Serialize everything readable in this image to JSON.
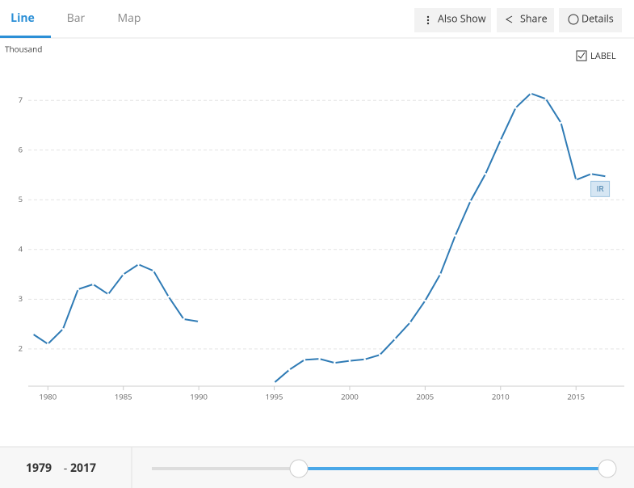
{
  "tabs": [
    "Line",
    "Bar",
    "Map"
  ],
  "actions": [
    "Also Show",
    "Share",
    "Details"
  ],
  "chart_data": {
    "type": "line",
    "y_unit": "Thousand",
    "legend_label": "LABEL",
    "x": [
      1979,
      1980,
      1981,
      1982,
      1983,
      1984,
      1985,
      1986,
      1987,
      1988,
      1989,
      1990,
      1991,
      1992,
      1993,
      1994,
      1995,
      1996,
      1997,
      1998,
      1999,
      2000,
      2001,
      2002,
      2003,
      2004,
      2005,
      2006,
      2007,
      2008,
      2009,
      2010,
      2011,
      2012,
      2013,
      2014,
      2015,
      2016,
      2017
    ],
    "series": [
      {
        "name": "IR",
        "color": "#2f7bb5",
        "values": [
          2.3,
          2.1,
          2.4,
          3.2,
          3.3,
          3.1,
          3.5,
          3.7,
          3.57,
          3.05,
          2.6,
          2.55,
          null,
          null,
          null,
          null,
          1.32,
          1.58,
          1.78,
          1.8,
          1.72,
          1.76,
          1.79,
          1.88,
          2.2,
          2.53,
          2.97,
          3.5,
          4.28,
          4.97,
          5.52,
          6.2,
          6.85,
          7.14,
          7.03,
          6.55,
          5.4,
          5.52,
          5.47
        ]
      }
    ],
    "xlim": [
      1978.7,
      2018.2
    ],
    "ylim": [
      1.25,
      7.8
    ],
    "xticks": [
      1980,
      1985,
      1990,
      1995,
      2000,
      2005,
      2010,
      2015
    ],
    "yticks": [
      2,
      3,
      4,
      5,
      6,
      7
    ],
    "grid": true
  },
  "range": {
    "start": 1979,
    "separator": "-",
    "end": 2017
  }
}
